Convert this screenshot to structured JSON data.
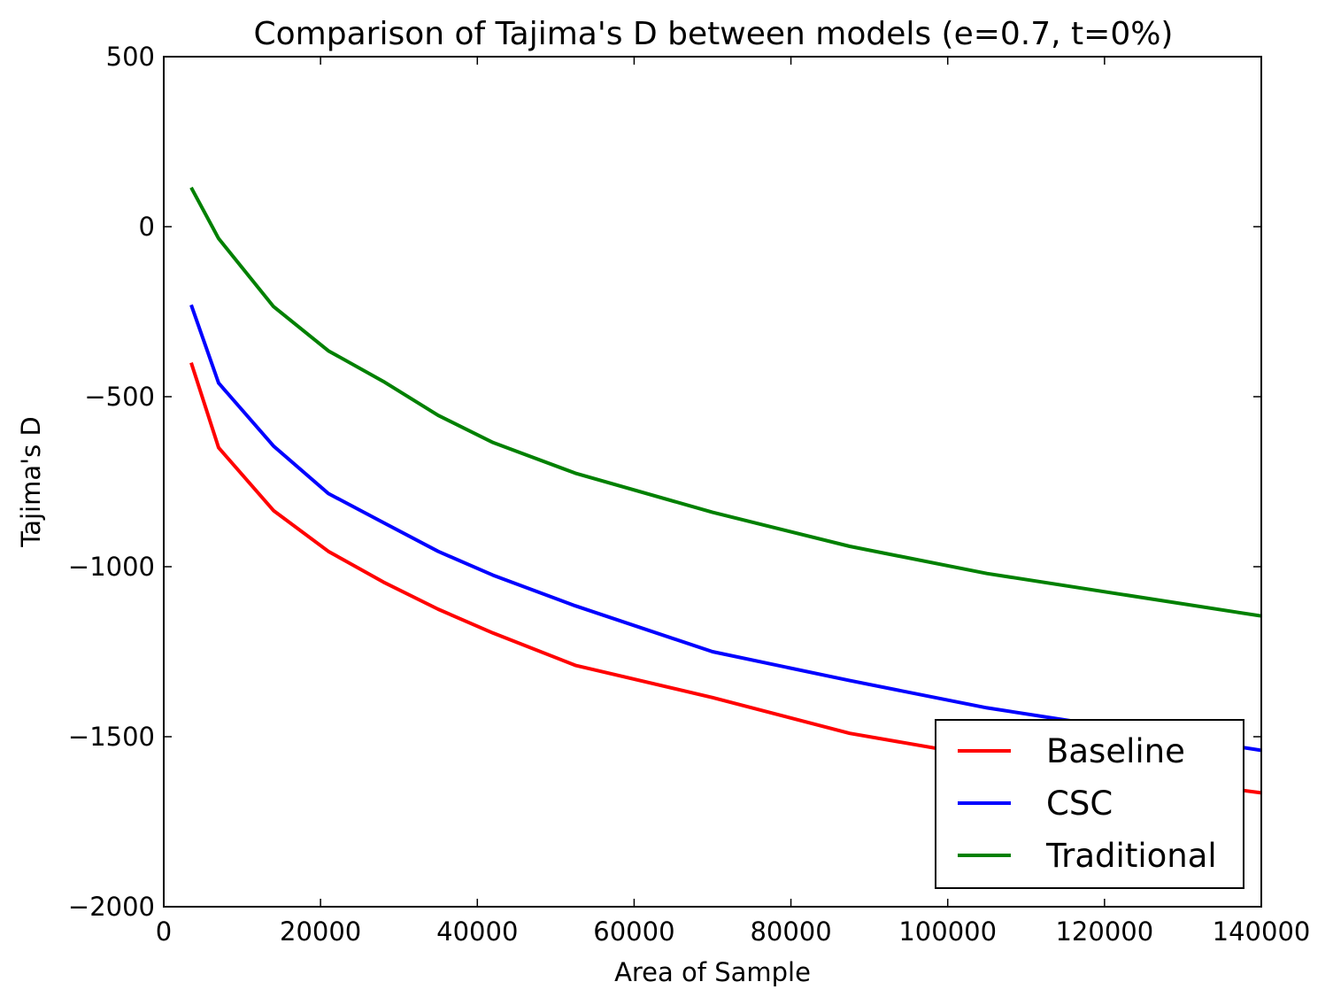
{
  "chart_data": {
    "type": "line",
    "title": "Comparison of Tajima's D between models (e=0.7, t=0%)",
    "xlabel": "Area of Sample",
    "ylabel": "Tajima's D",
    "xlim": [
      0,
      140000
    ],
    "ylim": [
      -2000,
      500
    ],
    "x_ticks": [
      0,
      20000,
      40000,
      60000,
      80000,
      100000,
      120000,
      140000
    ],
    "x_tick_labels": [
      "0",
      "20000",
      "40000",
      "60000",
      "80000",
      "100000",
      "120000",
      "140000"
    ],
    "y_ticks": [
      500,
      0,
      -500,
      -1000,
      -1500,
      -2000
    ],
    "y_tick_labels": [
      "500",
      "0",
      "−500",
      "−1000",
      "−1500",
      "−2000"
    ],
    "grid": false,
    "legend_position": "bottom-right",
    "x": [
      3500,
      7000,
      14000,
      21000,
      28000,
      35000,
      42000,
      52500,
      70000,
      87500,
      105000,
      140000
    ],
    "series": [
      {
        "name": "Baseline",
        "color": "#ff0000",
        "values": [
          -400,
          -650,
          -835,
          -955,
          -1045,
          -1125,
          -1195,
          -1290,
          -1385,
          -1490,
          -1560,
          -1665
        ]
      },
      {
        "name": "CSC",
        "color": "#0000ff",
        "values": [
          -230,
          -460,
          -645,
          -785,
          -870,
          -955,
          -1025,
          -1115,
          -1250,
          -1335,
          -1415,
          -1540
        ]
      },
      {
        "name": "Traditional",
        "color": "#008000",
        "values": [
          115,
          -35,
          -235,
          -365,
          -455,
          -555,
          -635,
          -725,
          -840,
          -940,
          -1020,
          -1145
        ]
      }
    ]
  }
}
